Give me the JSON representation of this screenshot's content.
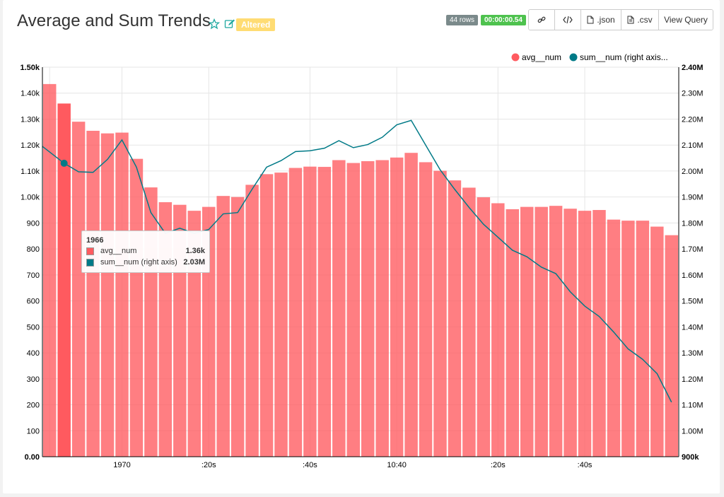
{
  "header": {
    "title": "Average and Sum Trends",
    "altered_label": "Altered",
    "rows_label": "44 rows",
    "timer_label": "00:00:00.54",
    "buttons": [
      {
        "label": "",
        "icon": "link-icon"
      },
      {
        "label": "",
        "icon": "code-icon"
      },
      {
        "label": ".json",
        "icon": "file-icon"
      },
      {
        "label": ".csv",
        "icon": "file-icon"
      },
      {
        "label": "View Query",
        "icon": ""
      }
    ]
  },
  "tooltip": {
    "title": "1966",
    "rows": [
      {
        "label": "avg__num",
        "value": "1.36k",
        "color": "#ff5a5f"
      },
      {
        "label": "sum__num (right axis)",
        "value": "2.03M",
        "color": "#007a87"
      }
    ]
  },
  "chart_data": {
    "type": "bar",
    "colors": {
      "avg": "#ff5a5f",
      "sum": "#007a87"
    },
    "legend": [
      "avg__num",
      "sum__num (right axis..."
    ],
    "legend_position": "top-right",
    "x_ticks": [
      {
        "label": "1970",
        "index": 5
      },
      {
        "label": ":20s",
        "index": 11
      },
      {
        "label": ":40s",
        "index": 18
      },
      {
        "label": "10:40",
        "index": 24
      },
      {
        "label": ":20s",
        "index": 31
      },
      {
        "label": ":40s",
        "index": 37
      }
    ],
    "left_axis": {
      "ticks": [
        "0.00",
        "100",
        "200",
        "300",
        "400",
        "500",
        "600",
        "700",
        "800",
        "900",
        "1.00k",
        "1.10k",
        "1.20k",
        "1.30k",
        "1.40k",
        "1.50k"
      ],
      "ylim": [
        0,
        1500
      ]
    },
    "right_axis": {
      "ticks": [
        "900k",
        "1.00M",
        "1.10M",
        "1.20M",
        "1.30M",
        "1.40M",
        "1.50M",
        "1.60M",
        "1.70M",
        "1.80M",
        "1.90M",
        "2.00M",
        "2.10M",
        "2.20M",
        "2.30M",
        "2.40M"
      ],
      "ylim": [
        900000,
        2400000
      ]
    },
    "highlight_index": 1,
    "series": [
      {
        "name": "avg__num",
        "axis": "left",
        "values": [
          1435,
          1360,
          1290,
          1255,
          1245,
          1248,
          1147,
          1037,
          980,
          970,
          947,
          962,
          1004,
          1000,
          1047,
          1088,
          1094,
          1112,
          1117,
          1116,
          1142,
          1131,
          1138,
          1142,
          1152,
          1170,
          1134,
          1101,
          1064,
          1036,
          999,
          976,
          953,
          962,
          962,
          966,
          955,
          947,
          950,
          913,
          909,
          909,
          886,
          853
        ]
      },
      {
        "name": "sum__num (right axis)",
        "axis": "right",
        "values": [
          2095000,
          2030000,
          1997000,
          1995000,
          2045000,
          2120000,
          2015000,
          1840000,
          1760000,
          1780000,
          1760000,
          1775000,
          1835000,
          1840000,
          1930000,
          2015000,
          2040000,
          2075000,
          2078000,
          2088000,
          2117000,
          2090000,
          2102000,
          2130000,
          2178000,
          2195000,
          2100000,
          2005000,
          1930000,
          1860000,
          1795000,
          1745000,
          1695000,
          1670000,
          1630000,
          1605000,
          1535000,
          1480000,
          1440000,
          1380000,
          1315000,
          1275000,
          1220000,
          1110000
        ]
      }
    ]
  }
}
